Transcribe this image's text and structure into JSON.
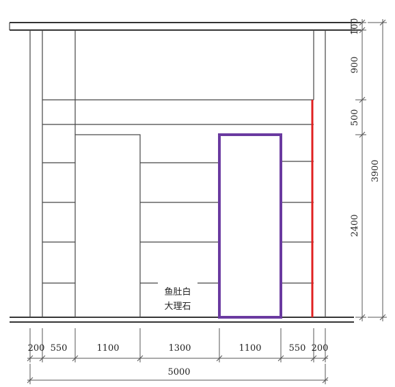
{
  "material_label": {
    "line1": "鱼肚白",
    "line2": "大理石"
  },
  "dimensions": {
    "horizontal": [
      "200",
      "550",
      "1100",
      "1300",
      "1100",
      "550",
      "200"
    ],
    "total_width": "5000",
    "vertical": [
      "100",
      "900",
      "500",
      "2400"
    ],
    "total_height": "3900"
  },
  "colors": {
    "highlight_rect": "#6a3aa0",
    "highlight_line": "#e02020",
    "line": "#444444"
  }
}
